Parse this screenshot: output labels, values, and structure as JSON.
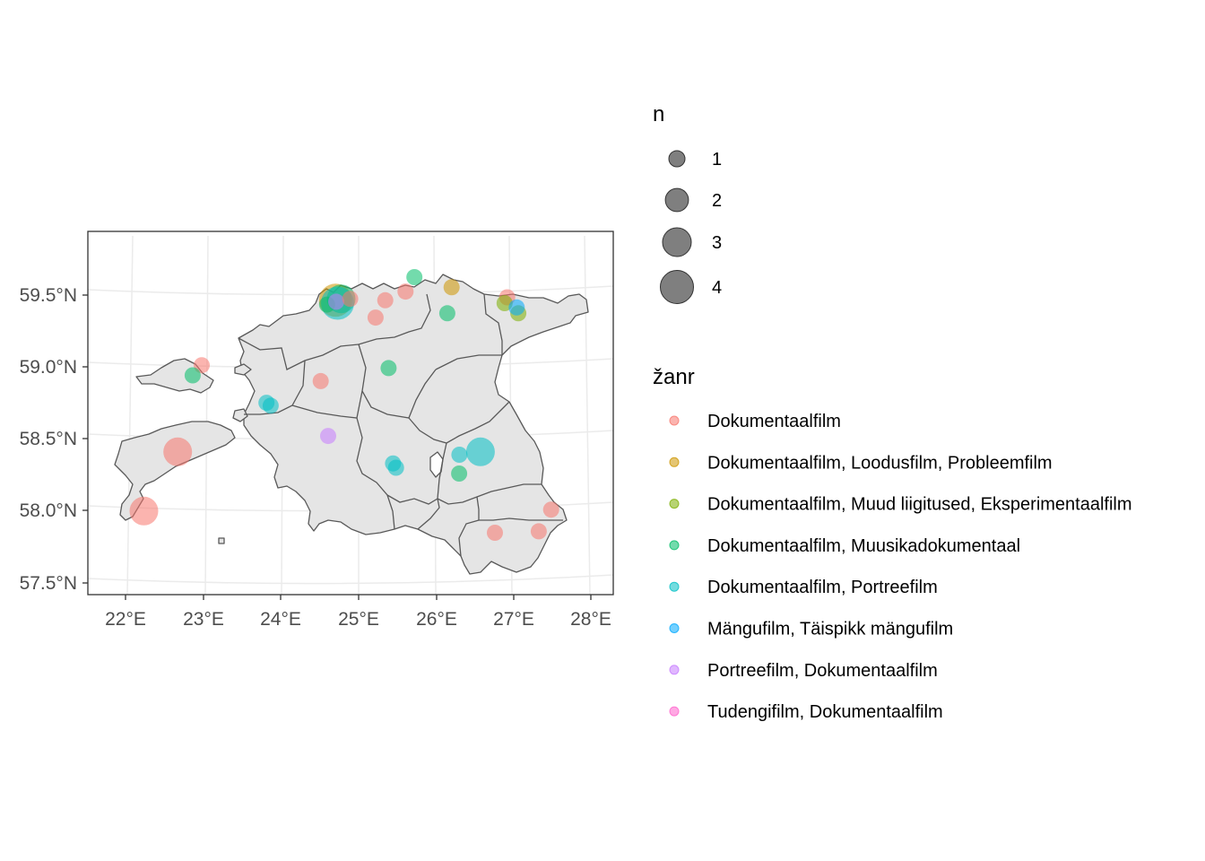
{
  "chart_data": {
    "type": "scatter",
    "subtype": "bubble-map",
    "title": "",
    "x_ticks": [
      "22°E",
      "23°E",
      "24°E",
      "25°E",
      "26°E",
      "27°E",
      "28°E"
    ],
    "x_tick_values": [
      22,
      23,
      24,
      25,
      26,
      27,
      28
    ],
    "y_ticks": [
      "57.5°N",
      "58.0°N",
      "58.5°N",
      "59.0°N",
      "59.5°N"
    ],
    "y_tick_values": [
      57.5,
      58.0,
      58.5,
      59.0,
      59.5
    ],
    "xlim": [
      21.5,
      28.3
    ],
    "ylim": [
      57.35,
      59.9
    ],
    "colors": {
      "panel_border": "#333333",
      "grid": "#ebebeb",
      "land_fill": "#e5e5e5",
      "county_border": "#595959",
      "size_legend_fill": "#7f7f7f"
    },
    "size_legend": {
      "title": "n",
      "entries": [
        {
          "label": "1",
          "value": 1
        },
        {
          "label": "2",
          "value": 2
        },
        {
          "label": "3",
          "value": 3
        },
        {
          "label": "4",
          "value": 4
        }
      ]
    },
    "color_legend": {
      "title": "žanr",
      "entries": [
        {
          "label": "Dokumentaalfilm",
          "color": "#F8766D"
        },
        {
          "label": "Dokumentaalfilm, Loodusfilm, Probleemfilm",
          "color": "#CD9600"
        },
        {
          "label": "Dokumentaalfilm, Muud liigitused, Eksperimentaalfilm",
          "color": "#7CAE00"
        },
        {
          "label": "Dokumentaalfilm, Muusikadokumentaal",
          "color": "#00BE67"
        },
        {
          "label": "Dokumentaalfilm, Portreefilm",
          "color": "#00BFC4"
        },
        {
          "label": "Mängufilm, Täispikk mängufilm",
          "color": "#00A9FF"
        },
        {
          "label": "Portreefilm, Dokumentaalfilm",
          "color": "#C77CFF"
        },
        {
          "label": "Tudengifilm, Dokumentaalfilm",
          "color": "#FF61CC"
        }
      ]
    },
    "points": [
      {
        "lon": 22.8,
        "lat": 58.98,
        "n": 1,
        "genre": 0
      },
      {
        "lon": 22.68,
        "lat": 58.91,
        "n": 1,
        "genre": 3
      },
      {
        "lon": 22.52,
        "lat": 58.38,
        "n": 3,
        "genre": 0
      },
      {
        "lon": 22.1,
        "lat": 57.97,
        "n": 3,
        "genre": 0
      },
      {
        "lon": 23.72,
        "lat": 58.72,
        "n": 1,
        "genre": 4
      },
      {
        "lon": 23.78,
        "lat": 58.7,
        "n": 1,
        "genre": 4
      },
      {
        "lon": 24.47,
        "lat": 58.87,
        "n": 1,
        "genre": 0
      },
      {
        "lon": 24.58,
        "lat": 58.49,
        "n": 1,
        "genre": 6
      },
      {
        "lon": 24.67,
        "lat": 59.43,
        "n": 4,
        "genre": 1
      },
      {
        "lon": 24.75,
        "lat": 59.44,
        "n": 3,
        "genre": 3
      },
      {
        "lon": 24.7,
        "lat": 59.41,
        "n": 4,
        "genre": 4
      },
      {
        "lon": 24.55,
        "lat": 59.4,
        "n": 1,
        "genre": 3
      },
      {
        "lon": 24.68,
        "lat": 59.42,
        "n": 1,
        "genre": 6
      },
      {
        "lon": 24.88,
        "lat": 59.44,
        "n": 1,
        "genre": 0
      },
      {
        "lon": 25.24,
        "lat": 59.31,
        "n": 1,
        "genre": 0
      },
      {
        "lon": 25.38,
        "lat": 59.43,
        "n": 1,
        "genre": 0
      },
      {
        "lon": 25.42,
        "lat": 58.96,
        "n": 1,
        "genre": 3
      },
      {
        "lon": 25.67,
        "lat": 59.49,
        "n": 1,
        "genre": 0
      },
      {
        "lon": 25.8,
        "lat": 59.59,
        "n": 1,
        "genre": 3
      },
      {
        "lon": 25.47,
        "lat": 58.3,
        "n": 1,
        "genre": 4
      },
      {
        "lon": 25.51,
        "lat": 58.27,
        "n": 1,
        "genre": 4
      },
      {
        "lon": 26.26,
        "lat": 59.34,
        "n": 1,
        "genre": 3
      },
      {
        "lon": 26.33,
        "lat": 59.52,
        "n": 1,
        "genre": 1
      },
      {
        "lon": 26.38,
        "lat": 58.36,
        "n": 1,
        "genre": 4
      },
      {
        "lon": 26.37,
        "lat": 58.23,
        "n": 1,
        "genre": 3
      },
      {
        "lon": 26.67,
        "lat": 58.38,
        "n": 3,
        "genre": 4
      },
      {
        "lon": 27.12,
        "lat": 59.45,
        "n": 1,
        "genre": 0
      },
      {
        "lon": 27.08,
        "lat": 59.41,
        "n": 1,
        "genre": 2
      },
      {
        "lon": 27.27,
        "lat": 59.34,
        "n": 1,
        "genre": 2
      },
      {
        "lon": 27.25,
        "lat": 59.38,
        "n": 1,
        "genre": 5
      },
      {
        "lon": 26.83,
        "lat": 57.82,
        "n": 1,
        "genre": 0
      },
      {
        "lon": 27.42,
        "lat": 57.83,
        "n": 1,
        "genre": 0
      },
      {
        "lon": 27.6,
        "lat": 57.98,
        "n": 1,
        "genre": 0
      }
    ]
  }
}
